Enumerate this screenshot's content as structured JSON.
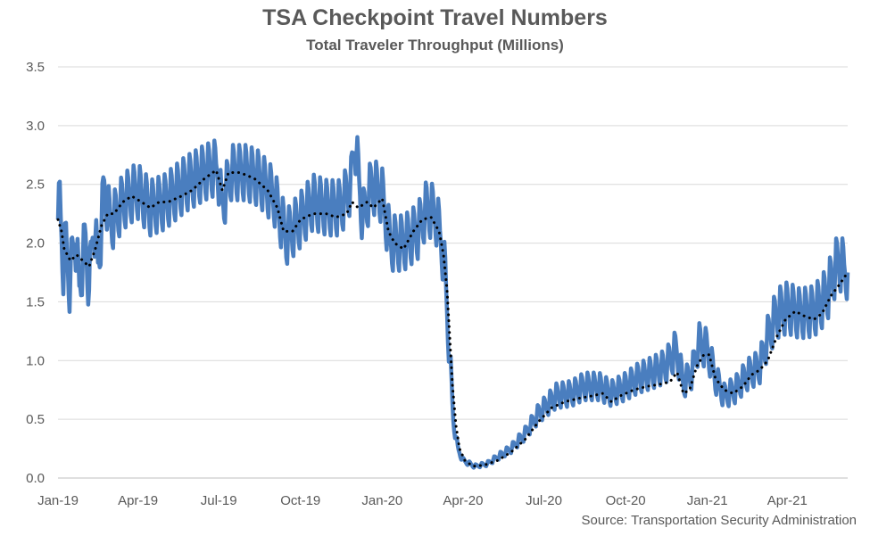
{
  "chart_data": {
    "type": "line",
    "title": "TSA Checkpoint Travel Numbers",
    "subtitle": "Total Traveler Throughput (Millions)",
    "xlabel": "",
    "ylabel": "",
    "ylim": [
      0,
      3.5
    ],
    "yticks": [
      "0.0",
      "0.5",
      "1.0",
      "1.5",
      "2.0",
      "2.5",
      "3.0",
      "3.5"
    ],
    "xticks": [
      "Jan-19",
      "Apr-19",
      "Jul-19",
      "Oct-19",
      "Jan-20",
      "Apr-20",
      "Jul-20",
      "Oct-20",
      "Jan-21",
      "Apr-21"
    ],
    "xlim": [
      "2019-01-01",
      "2021-06-08"
    ],
    "grid": "horizontal",
    "legend": "none",
    "source": "Source: Transportation Security Administration",
    "series": [
      {
        "style": "daily",
        "color": "#4a7ebf",
        "points": [
          [
            "2019-01-01",
            2.2
          ],
          [
            "2019-01-03",
            2.35
          ],
          [
            "2019-01-07",
            1.8
          ],
          [
            "2019-01-10",
            2.0
          ],
          [
            "2019-01-14",
            1.65
          ],
          [
            "2019-01-20",
            2.1
          ],
          [
            "2019-01-25",
            1.6
          ],
          [
            "2019-02-01",
            2.05
          ],
          [
            "2019-02-05",
            1.6
          ],
          [
            "2019-02-10",
            2.2
          ],
          [
            "2019-02-15",
            1.8
          ],
          [
            "2019-02-18",
            2.05
          ],
          [
            "2019-02-22",
            2.5
          ],
          [
            "2019-03-01",
            2.15
          ],
          [
            "2019-03-15",
            2.35
          ],
          [
            "2019-03-31",
            2.45
          ],
          [
            "2019-04-15",
            2.3
          ],
          [
            "2019-05-01",
            2.35
          ],
          [
            "2019-05-24",
            2.5
          ],
          [
            "2019-06-15",
            2.6
          ],
          [
            "2019-06-30",
            2.65
          ],
          [
            "2019-07-04",
            2.3
          ],
          [
            "2019-07-15",
            2.6
          ],
          [
            "2019-08-01",
            2.6
          ],
          [
            "2019-08-15",
            2.55
          ],
          [
            "2019-09-01",
            2.4
          ],
          [
            "2019-09-15",
            2.05
          ],
          [
            "2019-10-01",
            2.2
          ],
          [
            "2019-10-15",
            2.35
          ],
          [
            "2019-10-31",
            2.3
          ],
          [
            "2019-11-15",
            2.3
          ],
          [
            "2019-11-27",
            2.5
          ],
          [
            "2019-12-01",
            2.9
          ],
          [
            "2019-12-10",
            2.2
          ],
          [
            "2019-12-20",
            2.5
          ],
          [
            "2020-01-01",
            2.4
          ],
          [
            "2020-01-10",
            2.0
          ],
          [
            "2020-01-25",
            2.0
          ],
          [
            "2020-02-10",
            2.1
          ],
          [
            "2020-02-20",
            2.3
          ],
          [
            "2020-03-01",
            2.25
          ],
          [
            "2020-03-08",
            2.0
          ],
          [
            "2020-03-12",
            1.7
          ],
          [
            "2020-03-15",
            1.3
          ],
          [
            "2020-03-18",
            0.9
          ],
          [
            "2020-03-21",
            0.5
          ],
          [
            "2020-03-26",
            0.25
          ],
          [
            "2020-04-01",
            0.15
          ],
          [
            "2020-04-14",
            0.1
          ],
          [
            "2020-04-28",
            0.12
          ],
          [
            "2020-05-10",
            0.18
          ],
          [
            "2020-05-25",
            0.25
          ],
          [
            "2020-06-10",
            0.38
          ],
          [
            "2020-06-25",
            0.55
          ],
          [
            "2020-07-15",
            0.7
          ],
          [
            "2020-08-01",
            0.72
          ],
          [
            "2020-08-15",
            0.78
          ],
          [
            "2020-09-01",
            0.78
          ],
          [
            "2020-09-15",
            0.72
          ],
          [
            "2020-10-01",
            0.78
          ],
          [
            "2020-10-15",
            0.85
          ],
          [
            "2020-11-01",
            0.9
          ],
          [
            "2020-11-15",
            0.95
          ],
          [
            "2020-11-27",
            1.1
          ],
          [
            "2020-12-05",
            0.8
          ],
          [
            "2020-12-15",
            0.9
          ],
          [
            "2020-12-22",
            1.15
          ],
          [
            "2021-01-01",
            1.1
          ],
          [
            "2021-01-10",
            0.85
          ],
          [
            "2021-01-20",
            0.7
          ],
          [
            "2021-02-01",
            0.75
          ],
          [
            "2021-02-15",
            0.88
          ],
          [
            "2021-03-01",
            0.95
          ],
          [
            "2021-03-10",
            1.2
          ],
          [
            "2021-03-20",
            1.4
          ],
          [
            "2021-04-01",
            1.45
          ],
          [
            "2021-04-15",
            1.4
          ],
          [
            "2021-05-01",
            1.42
          ],
          [
            "2021-05-15",
            1.55
          ],
          [
            "2021-05-28",
            1.85
          ],
          [
            "2021-06-08",
            1.75
          ]
        ]
      },
      {
        "style": "7-day average",
        "color": "#000000",
        "points": [
          [
            "2019-01-01",
            2.2
          ],
          [
            "2019-01-05",
            2.1
          ],
          [
            "2019-01-08",
            1.95
          ],
          [
            "2019-01-15",
            1.85
          ],
          [
            "2019-01-22",
            1.9
          ],
          [
            "2019-01-29",
            1.85
          ],
          [
            "2019-02-05",
            1.8
          ],
          [
            "2019-02-12",
            1.95
          ],
          [
            "2019-02-19",
            2.15
          ],
          [
            "2019-02-26",
            2.25
          ],
          [
            "2019-03-05",
            2.25
          ],
          [
            "2019-03-15",
            2.35
          ],
          [
            "2019-03-25",
            2.4
          ],
          [
            "2019-04-05",
            2.35
          ],
          [
            "2019-04-15",
            2.3
          ],
          [
            "2019-04-25",
            2.35
          ],
          [
            "2019-05-05",
            2.35
          ],
          [
            "2019-05-20",
            2.4
          ],
          [
            "2019-06-01",
            2.45
          ],
          [
            "2019-06-15",
            2.55
          ],
          [
            "2019-06-28",
            2.62
          ],
          [
            "2019-07-05",
            2.45
          ],
          [
            "2019-07-12",
            2.6
          ],
          [
            "2019-07-25",
            2.6
          ],
          [
            "2019-08-10",
            2.55
          ],
          [
            "2019-08-25",
            2.45
          ],
          [
            "2019-09-05",
            2.3
          ],
          [
            "2019-09-12",
            2.1
          ],
          [
            "2019-09-22",
            2.1
          ],
          [
            "2019-10-01",
            2.2
          ],
          [
            "2019-10-15",
            2.25
          ],
          [
            "2019-10-30",
            2.25
          ],
          [
            "2019-11-10",
            2.22
          ],
          [
            "2019-11-22",
            2.25
          ],
          [
            "2019-11-28",
            2.35
          ],
          [
            "2019-12-05",
            2.3
          ],
          [
            "2019-12-15",
            2.35
          ],
          [
            "2019-12-22",
            2.3
          ],
          [
            "2020-01-01",
            2.38
          ],
          [
            "2020-01-08",
            2.1
          ],
          [
            "2020-01-15",
            2.0
          ],
          [
            "2020-01-25",
            1.95
          ],
          [
            "2020-02-05",
            2.1
          ],
          [
            "2020-02-15",
            2.2
          ],
          [
            "2020-02-25",
            2.22
          ],
          [
            "2020-03-05",
            2.1
          ],
          [
            "2020-03-10",
            1.9
          ],
          [
            "2020-03-14",
            1.6
          ],
          [
            "2020-03-17",
            1.2
          ],
          [
            "2020-03-20",
            0.8
          ],
          [
            "2020-03-24",
            0.45
          ],
          [
            "2020-03-28",
            0.25
          ],
          [
            "2020-04-03",
            0.15
          ],
          [
            "2020-04-12",
            0.1
          ],
          [
            "2020-04-25",
            0.11
          ],
          [
            "2020-05-10",
            0.15
          ],
          [
            "2020-05-25",
            0.22
          ],
          [
            "2020-06-10",
            0.33
          ],
          [
            "2020-06-25",
            0.48
          ],
          [
            "2020-07-10",
            0.6
          ],
          [
            "2020-07-25",
            0.65
          ],
          [
            "2020-08-10",
            0.68
          ],
          [
            "2020-08-25",
            0.7
          ],
          [
            "2020-09-05",
            0.72
          ],
          [
            "2020-09-15",
            0.65
          ],
          [
            "2020-09-25",
            0.7
          ],
          [
            "2020-10-10",
            0.75
          ],
          [
            "2020-10-25",
            0.78
          ],
          [
            "2020-11-10",
            0.8
          ],
          [
            "2020-11-20",
            0.82
          ],
          [
            "2020-11-28",
            0.9
          ],
          [
            "2020-12-05",
            0.72
          ],
          [
            "2020-12-12",
            0.75
          ],
          [
            "2020-12-20",
            0.95
          ],
          [
            "2020-12-28",
            1.05
          ],
          [
            "2021-01-03",
            1.05
          ],
          [
            "2021-01-10",
            0.85
          ],
          [
            "2021-01-20",
            0.75
          ],
          [
            "2021-01-30",
            0.72
          ],
          [
            "2021-02-10",
            0.78
          ],
          [
            "2021-02-20",
            0.88
          ],
          [
            "2021-03-01",
            0.92
          ],
          [
            "2021-03-10",
            1.0
          ],
          [
            "2021-03-20",
            1.2
          ],
          [
            "2021-03-30",
            1.35
          ],
          [
            "2021-04-10",
            1.42
          ],
          [
            "2021-04-20",
            1.38
          ],
          [
            "2021-05-01",
            1.35
          ],
          [
            "2021-05-10",
            1.4
          ],
          [
            "2021-05-20",
            1.55
          ],
          [
            "2021-05-30",
            1.65
          ],
          [
            "2021-06-08",
            1.75
          ]
        ]
      }
    ]
  }
}
